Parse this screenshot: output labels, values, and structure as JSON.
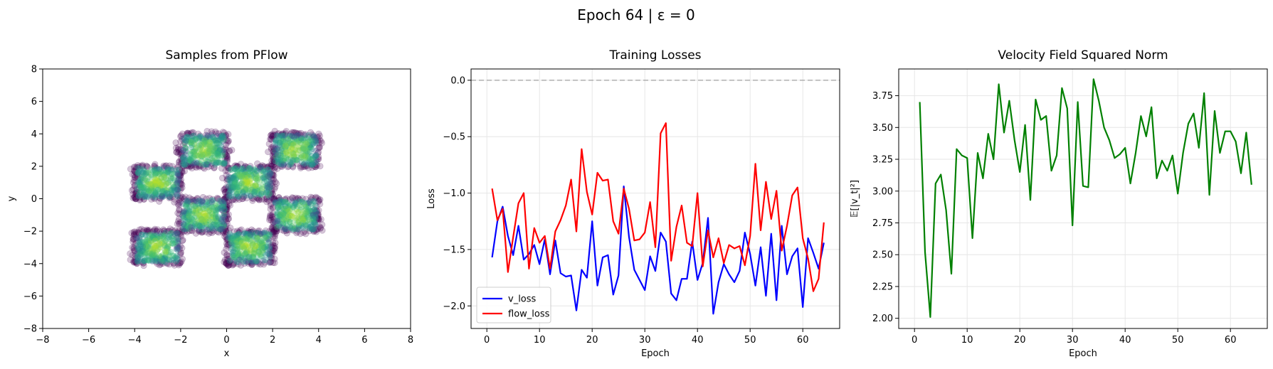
{
  "figure": {
    "suptitle": "Epoch 64 | ε = 0"
  },
  "chart_data": [
    {
      "type": "scatter",
      "title": "Samples from PFlow",
      "xlabel": "x",
      "ylabel": "y",
      "xlim": [
        -8,
        8
      ],
      "ylim": [
        -8,
        8
      ],
      "xticks": [
        -8,
        -6,
        -4,
        -2,
        0,
        2,
        4,
        6,
        8
      ],
      "yticks": [
        -8,
        -6,
        -4,
        -2,
        0,
        2,
        4,
        6,
        8
      ],
      "grid": false,
      "colormap": "viridis",
      "point_alpha": 0.25,
      "clusters": [
        {
          "x_range": [
            -2,
            0
          ],
          "y_range": [
            2,
            4
          ]
        },
        {
          "x_range": [
            2,
            4
          ],
          "y_range": [
            2,
            4
          ]
        },
        {
          "x_range": [
            -4,
            -2
          ],
          "y_range": [
            0,
            2
          ]
        },
        {
          "x_range": [
            0,
            2
          ],
          "y_range": [
            0,
            2
          ]
        },
        {
          "x_range": [
            -2,
            0
          ],
          "y_range": [
            -2,
            0
          ]
        },
        {
          "x_range": [
            2,
            4
          ],
          "y_range": [
            -2,
            0
          ]
        },
        {
          "x_range": [
            -4,
            -2
          ],
          "y_range": [
            -4,
            -2
          ]
        },
        {
          "x_range": [
            0,
            2
          ],
          "y_range": [
            -4,
            -2
          ]
        }
      ]
    },
    {
      "type": "line",
      "title": "Training Losses",
      "xlabel": "Epoch",
      "ylabel": "Loss",
      "xlim": [
        -3,
        67
      ],
      "ylim": [
        -2.2,
        0.1
      ],
      "xticks": [
        0,
        10,
        20,
        30,
        40,
        50,
        60
      ],
      "yticks": [
        -2.0,
        -1.5,
        -1.0,
        -0.5,
        0.0
      ],
      "ytick_labels": [
        "−2.0",
        "−1.5",
        "−1.0",
        "−0.5",
        "0.0"
      ],
      "grid": true,
      "legend": "lower-left",
      "reference_line": {
        "y": 0,
        "color": "#b0b0b0",
        "style": "dashed"
      },
      "x": [
        1,
        2,
        3,
        4,
        5,
        6,
        7,
        8,
        9,
        10,
        11,
        12,
        13,
        14,
        15,
        16,
        17,
        18,
        19,
        20,
        21,
        22,
        23,
        24,
        25,
        26,
        27,
        28,
        29,
        30,
        31,
        32,
        33,
        34,
        35,
        36,
        37,
        38,
        39,
        40,
        41,
        42,
        43,
        44,
        45,
        46,
        47,
        48,
        49,
        50,
        51,
        52,
        53,
        54,
        55,
        56,
        57,
        58,
        59,
        60,
        61,
        62,
        63,
        64
      ],
      "series": [
        {
          "name": "v_loss",
          "color": "#0000ff",
          "values": [
            -1.57,
            -1.25,
            -1.12,
            -1.38,
            -1.55,
            -1.29,
            -1.59,
            -1.54,
            -1.46,
            -1.63,
            -1.41,
            -1.72,
            -1.42,
            -1.71,
            -1.74,
            -1.73,
            -2.04,
            -1.68,
            -1.75,
            -1.25,
            -1.82,
            -1.57,
            -1.55,
            -1.9,
            -1.73,
            -0.94,
            -1.39,
            -1.68,
            -1.77,
            -1.86,
            -1.56,
            -1.69,
            -1.35,
            -1.43,
            -1.89,
            -1.95,
            -1.76,
            -1.76,
            -1.43,
            -1.77,
            -1.62,
            -1.22,
            -2.07,
            -1.79,
            -1.63,
            -1.72,
            -1.79,
            -1.69,
            -1.35,
            -1.54,
            -1.82,
            -1.48,
            -1.91,
            -1.36,
            -1.95,
            -1.29,
            -1.72,
            -1.56,
            -1.49,
            -2.01,
            -1.4,
            -1.53,
            -1.67,
            -1.44
          ]
        },
        {
          "name": "flow_loss",
          "color": "#ff0000",
          "values": [
            -0.96,
            -1.24,
            -1.14,
            -1.7,
            -1.39,
            -1.09,
            -1.0,
            -1.67,
            -1.31,
            -1.44,
            -1.38,
            -1.67,
            -1.34,
            -1.24,
            -1.11,
            -0.88,
            -1.34,
            -0.61,
            -0.99,
            -1.19,
            -0.82,
            -0.89,
            -0.88,
            -1.25,
            -1.36,
            -0.96,
            -1.14,
            -1.42,
            -1.41,
            -1.35,
            -1.08,
            -1.48,
            -0.47,
            -0.38,
            -1.6,
            -1.3,
            -1.11,
            -1.44,
            -1.47,
            -1.0,
            -1.65,
            -1.33,
            -1.57,
            -1.4,
            -1.62,
            -1.46,
            -1.49,
            -1.47,
            -1.64,
            -1.38,
            -0.74,
            -1.33,
            -0.9,
            -1.23,
            -0.98,
            -1.51,
            -1.29,
            -1.02,
            -0.95,
            -1.4,
            -1.58,
            -1.87,
            -1.76,
            -1.26
          ]
        }
      ]
    },
    {
      "type": "line",
      "title": "Velocity Field Squared Norm",
      "xlabel": "Epoch",
      "ylabel": "𝔼[|v_t|²]",
      "xlim": [
        -3,
        67
      ],
      "ylim": [
        1.92,
        3.96
      ],
      "xticks": [
        0,
        10,
        20,
        30,
        40,
        50,
        60
      ],
      "yticks": [
        2.0,
        2.25,
        2.5,
        2.75,
        3.0,
        3.25,
        3.5,
        3.75
      ],
      "ytick_labels": [
        "2.00",
        "2.25",
        "2.50",
        "2.75",
        "3.00",
        "3.25",
        "3.50",
        "3.75"
      ],
      "grid": true,
      "x": [
        1,
        2,
        3,
        4,
        5,
        6,
        7,
        8,
        9,
        10,
        11,
        12,
        13,
        14,
        15,
        16,
        17,
        18,
        19,
        20,
        21,
        22,
        23,
        24,
        25,
        26,
        27,
        28,
        29,
        30,
        31,
        32,
        33,
        34,
        35,
        36,
        37,
        38,
        39,
        40,
        41,
        42,
        43,
        44,
        45,
        46,
        47,
        48,
        49,
        50,
        51,
        52,
        53,
        54,
        55,
        56,
        57,
        58,
        59,
        60,
        61,
        62,
        63,
        64
      ],
      "series": [
        {
          "name": "",
          "color": "#008000",
          "values": [
            3.7,
            2.52,
            2.01,
            3.06,
            3.13,
            2.85,
            2.35,
            3.33,
            3.28,
            3.26,
            2.63,
            3.3,
            3.1,
            3.45,
            3.25,
            3.84,
            3.46,
            3.71,
            3.4,
            3.15,
            3.52,
            2.93,
            3.72,
            3.56,
            3.59,
            3.16,
            3.28,
            3.81,
            3.65,
            2.73,
            3.7,
            3.04,
            3.03,
            3.88,
            3.71,
            3.5,
            3.4,
            3.26,
            3.29,
            3.34,
            3.06,
            3.3,
            3.59,
            3.43,
            3.66,
            3.1,
            3.24,
            3.16,
            3.28,
            2.98,
            3.3,
            3.53,
            3.61,
            3.34,
            3.77,
            2.97,
            3.63,
            3.3,
            3.47,
            3.47,
            3.39,
            3.14,
            3.46,
            3.05
          ]
        }
      ]
    }
  ]
}
